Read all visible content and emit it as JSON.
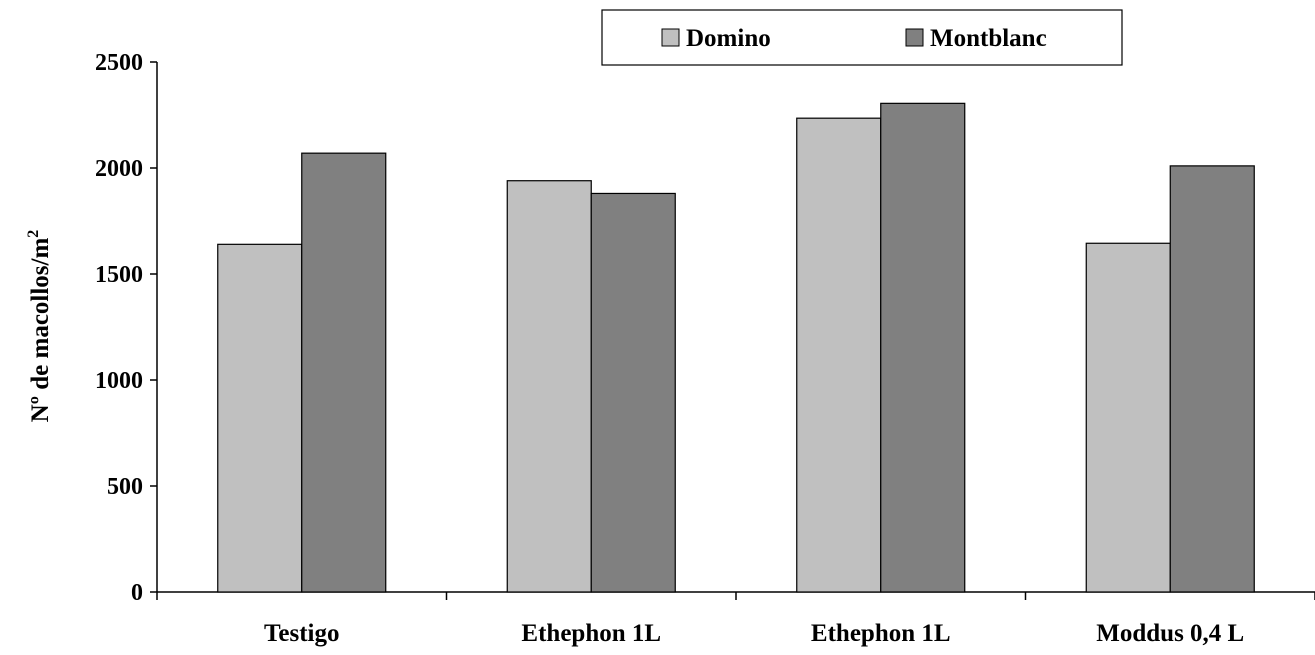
{
  "chart_data": {
    "type": "bar",
    "title": "",
    "xlabel": "",
    "ylabel": "Nº de macollos/m",
    "ylabel_superscript": "2",
    "categories": [
      "Testigo",
      "Ethephon 1L",
      "Ethephon 1L",
      "Moddus 0,4 L"
    ],
    "series": [
      {
        "name": "Domino",
        "values": [
          1640,
          1940,
          2235,
          1645
        ],
        "color": "#c0c0c0"
      },
      {
        "name": "Montblanc",
        "values": [
          2070,
          1880,
          2305,
          2010
        ],
        "color": "#808080"
      }
    ],
    "ylim": [
      0,
      2500
    ],
    "yticks": [
      0,
      500,
      1000,
      1500,
      2000,
      2500
    ],
    "grid": false,
    "legend_position": "top"
  }
}
